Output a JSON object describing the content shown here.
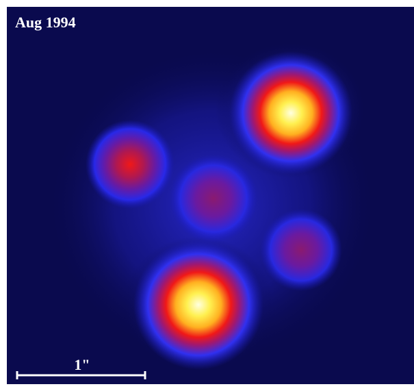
{
  "image": {
    "label": "Aug 1994",
    "scale_bar": {
      "label": "1\""
    }
  }
}
